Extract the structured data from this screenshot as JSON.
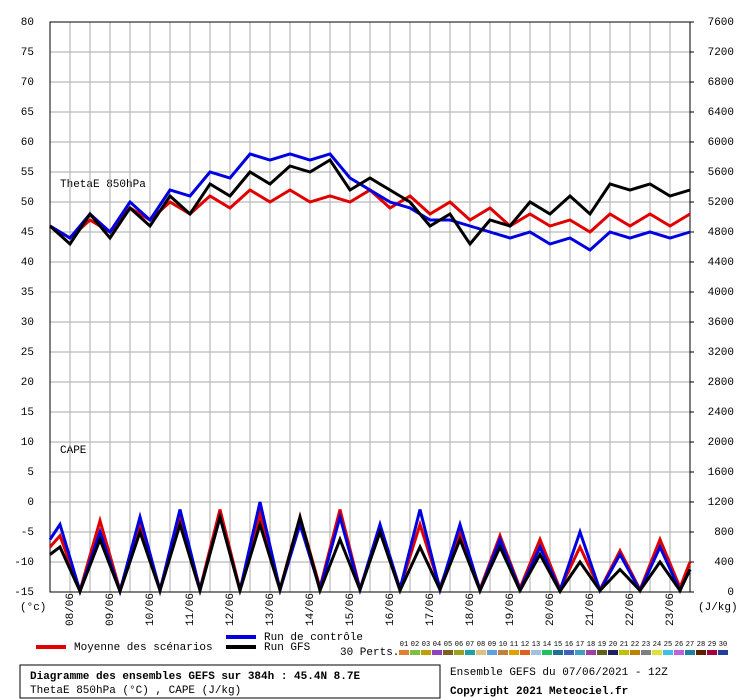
{
  "chart_data": [
    {
      "type": "line",
      "annotation": "ThetaE 850hPa",
      "axis_label": "(°c)",
      "xlim": [
        0,
        384
      ],
      "xticks": [
        {
          "value": 12,
          "label": "08/06"
        },
        {
          "value": 36,
          "label": "09/06"
        },
        {
          "value": 60,
          "label": "10/06"
        },
        {
          "value": 84,
          "label": "11/06"
        },
        {
          "value": 108,
          "label": "12/06"
        },
        {
          "value": 132,
          "label": "13/06"
        },
        {
          "value": 156,
          "label": "14/06"
        },
        {
          "value": 180,
          "label": "15/06"
        },
        {
          "value": 204,
          "label": "16/06"
        },
        {
          "value": 228,
          "label": "17/06"
        },
        {
          "value": 252,
          "label": "18/06"
        },
        {
          "value": 276,
          "label": "19/06"
        },
        {
          "value": 300,
          "label": "20/06"
        },
        {
          "value": 324,
          "label": "21/06"
        },
        {
          "value": 348,
          "label": "22/06"
        },
        {
          "value": 372,
          "label": "23/06"
        }
      ],
      "xminor": [
        0,
        24,
        48,
        72,
        96,
        120,
        144,
        168,
        192,
        216,
        240,
        264,
        288,
        312,
        336,
        360,
        384
      ],
      "ylim": [
        -15,
        80
      ],
      "yticks": [
        -15,
        -10,
        -5,
        0,
        5,
        10,
        15,
        20,
        25,
        30,
        35,
        40,
        45,
        50,
        55,
        60,
        65,
        70,
        75,
        80
      ],
      "grid": true,
      "x": [
        0,
        12,
        24,
        36,
        48,
        60,
        72,
        84,
        96,
        108,
        120,
        132,
        144,
        156,
        168,
        180,
        192,
        204,
        216,
        228,
        240,
        252,
        264,
        276,
        288,
        300,
        312,
        324,
        336,
        348,
        360,
        372,
        384
      ],
      "series": [
        {
          "name": "Moyenne des scénarios",
          "color": "#e00000",
          "values": [
            46,
            44,
            47,
            45,
            49,
            47,
            50,
            48,
            51,
            49,
            52,
            50,
            52,
            50,
            51,
            50,
            52,
            49,
            51,
            48,
            50,
            47,
            49,
            46,
            48,
            46,
            47,
            45,
            48,
            46,
            48,
            46,
            48
          ]
        },
        {
          "name": "Run de contrôle",
          "color": "#0000e0",
          "values": [
            46,
            44,
            48,
            45,
            50,
            47,
            52,
            51,
            55,
            54,
            58,
            57,
            58,
            57,
            58,
            54,
            52,
            50,
            49,
            47,
            47,
            46,
            45,
            44,
            45,
            43,
            44,
            42,
            45,
            44,
            45,
            44,
            45
          ]
        },
        {
          "name": "Run GFS",
          "color": "#000000",
          "values": [
            46,
            43,
            48,
            44,
            49,
            46,
            51,
            48,
            53,
            51,
            55,
            53,
            56,
            55,
            57,
            52,
            54,
            52,
            50,
            46,
            48,
            43,
            47,
            46,
            50,
            48,
            51,
            48,
            53,
            52,
            53,
            51,
            52
          ]
        }
      ]
    },
    {
      "type": "line",
      "annotation": "CAPE",
      "axis_label": "(J/kg)",
      "xlim": [
        0,
        384
      ],
      "y2lim": [
        0,
        7600
      ],
      "y2ticks": [
        0,
        400,
        800,
        1200,
        1600,
        2000,
        2400,
        2800,
        3200,
        3600,
        4000,
        4400,
        4800,
        5200,
        5600,
        6000,
        6400,
        6800,
        7200,
        7600
      ],
      "x": [
        0,
        6,
        18,
        30,
        42,
        54,
        66,
        78,
        90,
        102,
        114,
        126,
        138,
        150,
        162,
        174,
        186,
        198,
        210,
        222,
        234,
        246,
        258,
        270,
        282,
        294,
        306,
        318,
        330,
        342,
        354,
        366,
        378,
        384
      ],
      "series": [
        {
          "color": "#e00000",
          "axis": "y2",
          "values": [
            600,
            750,
            20,
            950,
            20,
            900,
            30,
            1000,
            40,
            1100,
            30,
            1050,
            40,
            1000,
            60,
            1100,
            40,
            800,
            50,
            900,
            60,
            800,
            40,
            750,
            50,
            700,
            40,
            600,
            30,
            550,
            30,
            700,
            60,
            400
          ]
        },
        {
          "color": "#0000e0",
          "axis": "y2",
          "values": [
            700,
            900,
            10,
            800,
            10,
            1000,
            20,
            1100,
            30,
            1000,
            20,
            1200,
            30,
            900,
            40,
            1000,
            30,
            900,
            40,
            1100,
            30,
            900,
            20,
            700,
            30,
            600,
            20,
            800,
            20,
            500,
            20,
            600,
            20,
            300
          ]
        },
        {
          "color": "#000000",
          "axis": "y2",
          "values": [
            500,
            600,
            10,
            700,
            10,
            800,
            20,
            900,
            20,
            1000,
            20,
            900,
            30,
            1000,
            20,
            700,
            30,
            800,
            20,
            600,
            30,
            700,
            20,
            600,
            20,
            500,
            10,
            400,
            20,
            300,
            20,
            400,
            20,
            300
          ]
        }
      ]
    }
  ],
  "perturbations": {
    "label": "30 Perts.",
    "members": [
      {
        "name": "01",
        "color": "#e08030"
      },
      {
        "name": "02",
        "color": "#80c040"
      },
      {
        "name": "03",
        "color": "#c0a000"
      },
      {
        "name": "04",
        "color": "#9040c0"
      },
      {
        "name": "05",
        "color": "#806020"
      },
      {
        "name": "06",
        "color": "#a0a020"
      },
      {
        "name": "07",
        "color": "#20a0a0"
      },
      {
        "name": "08",
        "color": "#e0c080"
      },
      {
        "name": "09",
        "color": "#60a0e0"
      },
      {
        "name": "10",
        "color": "#c08040"
      },
      {
        "name": "11",
        "color": "#e0a000"
      },
      {
        "name": "12",
        "color": "#e06020"
      },
      {
        "name": "13",
        "color": "#a0c0e0"
      },
      {
        "name": "14",
        "color": "#20c060"
      },
      {
        "name": "15",
        "color": "#207090"
      },
      {
        "name": "16",
        "color": "#4060c0"
      },
      {
        "name": "17",
        "color": "#40a0c0"
      },
      {
        "name": "18",
        "color": "#a040a0"
      },
      {
        "name": "19",
        "color": "#606020"
      },
      {
        "name": "20",
        "color": "#202060"
      },
      {
        "name": "21",
        "color": "#c0c000"
      },
      {
        "name": "22",
        "color": "#c08000"
      },
      {
        "name": "23",
        "color": "#808080"
      },
      {
        "name": "24",
        "color": "#e0e040"
      },
      {
        "name": "25",
        "color": "#40c0e0"
      },
      {
        "name": "26",
        "color": "#c060e0"
      },
      {
        "name": "27",
        "color": "#2080a0"
      },
      {
        "name": "28",
        "color": "#602000"
      },
      {
        "name": "29",
        "color": "#a00040"
      },
      {
        "name": "30",
        "color": "#2040a0"
      }
    ]
  },
  "footer": {
    "title": "Diagramme des ensembles GEFS sur 384h : 45.4N 8.7E",
    "subtitle": "ThetaE 850hPa (°C) , CAPE (J/kg)",
    "run": "Ensemble GEFS du 07/06/2021 - 12Z",
    "copyright": "Copyright 2021 Meteociel.fr"
  }
}
